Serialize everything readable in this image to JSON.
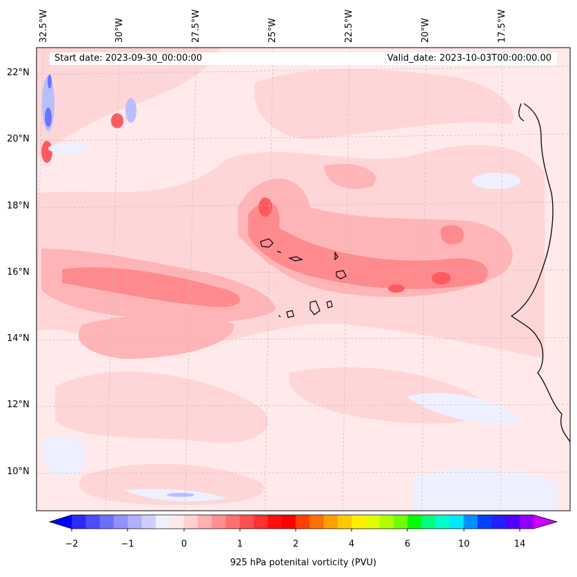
{
  "map": {
    "start_date": "Start date: 2023-09-30_00:00:00",
    "valid_date": "Valid_date: 2023-10-03T00:00:00.00",
    "lon_labels": [
      "32.5°W",
      "30°W",
      "27.5°W",
      "25°W",
      "22.5°W",
      "20°W",
      "17.5°W"
    ],
    "lat_labels": [
      "22°N",
      "20°N",
      "18°N",
      "16°N",
      "14°N",
      "12°N",
      "10°N"
    ],
    "colors": {
      "background": "#ffe9ea",
      "weak_pos": "#ffd6d8",
      "mid_pos": "#ffb5b8",
      "strong_pos": "#ff8a8e",
      "core_pos": "#ff5a60",
      "weak_neg": "#eef0ff",
      "mid_neg": "#b9beff",
      "strong_neg": "#6a72ff"
    }
  },
  "colorbar": {
    "label": "925 hPa potenital vorticity (PVU)",
    "tick_labels": [
      "−2",
      "−1",
      "0",
      "1",
      "2",
      "4",
      "6",
      "10",
      "14"
    ],
    "colors": [
      "#0000ff",
      "#2b2bff",
      "#4d4dff",
      "#6f6fff",
      "#9090ff",
      "#b0b0ff",
      "#d0d0ff",
      "#f0f0ff",
      "#ffe8e8",
      "#ffd0d0",
      "#ffb0b0",
      "#ff9090",
      "#ff7070",
      "#ff5050",
      "#ff3030",
      "#ff1010",
      "#ff0000",
      "#ff4000",
      "#ff7000",
      "#ffa000",
      "#ffc800",
      "#ffee00",
      "#e0ff00",
      "#b0ff00",
      "#70ff00",
      "#00ff00",
      "#00ff80",
      "#00ffc8",
      "#00e8ff",
      "#0090ff",
      "#0040ff",
      "#2020ff",
      "#5000ff",
      "#9000ff",
      "#cc00ff"
    ]
  }
}
